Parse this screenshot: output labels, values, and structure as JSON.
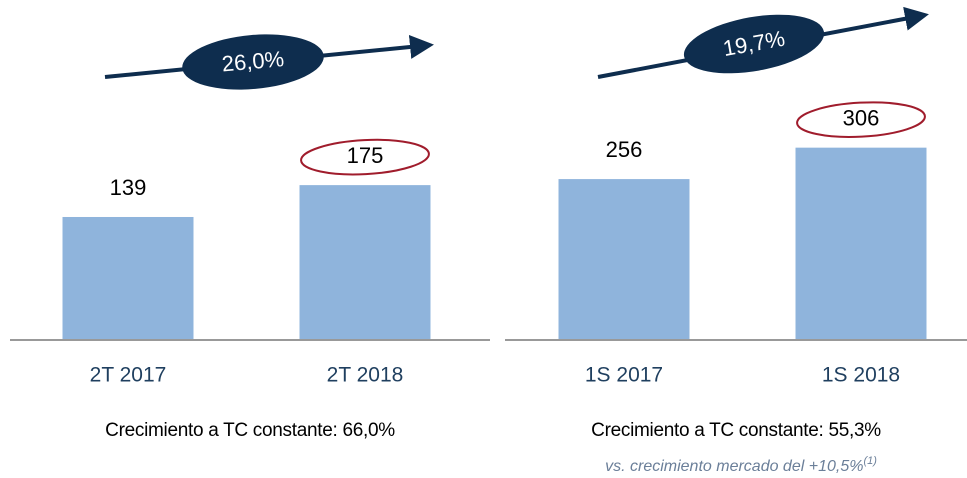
{
  "chart_data": [
    {
      "type": "bar",
      "categories": [
        "2T 2017",
        "2T 2018"
      ],
      "values": [
        139,
        175
      ],
      "color": "#8fb4dc",
      "ylim": [
        0,
        200
      ],
      "growth": "26,0%",
      "footer": "Crecimiento a TC constante: 66,0%"
    },
    {
      "type": "bar",
      "categories": [
        "1S 2017",
        "1S 2018"
      ],
      "values": [
        256,
        306
      ],
      "color": "#8fb4dc",
      "ylim": [
        0,
        350
      ],
      "growth": "19,7%",
      "footer": "Crecimiento a TC constante: 55,3%",
      "note": {
        "text": "vs. crecimiento mercado del +10,5%",
        "superscript": "(1)"
      }
    }
  ]
}
